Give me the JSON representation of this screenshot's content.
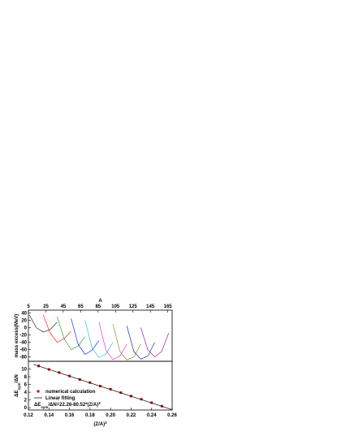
{
  "chart_data": [
    {
      "type": "line",
      "xlabel": "A",
      "ylabel": "mass excess(MeV)",
      "xlim": [
        5,
        170
      ],
      "ylim": [
        -92,
        48
      ],
      "xticks": [
        5,
        25,
        45,
        65,
        85,
        105,
        125,
        145,
        165
      ],
      "yticks": [
        40,
        20,
        0,
        -20,
        -40,
        -60,
        -80
      ],
      "series": [
        {
          "color": "#000000",
          "x": [
            6,
            14,
            22,
            30,
            38
          ],
          "values": [
            35,
            0,
            -12,
            -5,
            15
          ]
        },
        {
          "color": "#ff0000",
          "x": [
            22,
            30,
            38,
            46,
            54
          ],
          "values": [
            35,
            -15,
            -40,
            -30,
            -10
          ]
        },
        {
          "color": "#00a000",
          "x": [
            38,
            46,
            54,
            62,
            70
          ],
          "values": [
            30,
            -30,
            -60,
            -50,
            -25
          ]
        },
        {
          "color": "#0000ff",
          "x": [
            54,
            62,
            70,
            78,
            86
          ],
          "values": [
            25,
            -45,
            -73,
            -62,
            -35
          ]
        },
        {
          "color": "#00c0c0",
          "x": [
            70,
            78,
            86,
            94,
            102
          ],
          "values": [
            20,
            -55,
            -82,
            -72,
            -40
          ]
        },
        {
          "color": "#ff00ff",
          "x": [
            86,
            94,
            102,
            110,
            118
          ],
          "values": [
            15,
            -62,
            -87,
            -78,
            -45
          ]
        },
        {
          "color": "#808000",
          "x": [
            102,
            110,
            118,
            126,
            134
          ],
          "values": [
            10,
            -65,
            -88,
            -80,
            -45
          ]
        },
        {
          "color": "#000080",
          "x": [
            118,
            126,
            134,
            142,
            150
          ],
          "values": [
            5,
            -65,
            -86,
            -78,
            -40
          ]
        },
        {
          "color": "#800080",
          "x": [
            134,
            142,
            150,
            158,
            166
          ],
          "values": [
            0,
            -60,
            -80,
            -65,
            -15
          ]
        }
      ]
    },
    {
      "type": "scatter",
      "xlabel": [
        "(Z/A)",
        "2"
      ],
      "ylabel": [
        "ΔE",
        "sym",
        "/ΔN"
      ],
      "xlim": [
        0.12,
        0.26
      ],
      "ylim": [
        -0.6,
        12
      ],
      "xticks": [
        0.12,
        0.14,
        0.16,
        0.18,
        0.2,
        {
          "value": 0.2,
          "label": "0.20"
        },
        0.22,
        0.24,
        0.26
      ],
      "yticks": [
        0,
        2,
        4,
        6,
        8,
        10
      ],
      "series": [
        {
          "name": "numerical calculation",
          "color": "#d40000",
          "x": [
            0.13,
            0.14,
            0.15,
            0.16,
            0.17,
            0.18,
            0.19,
            0.2,
            0.21,
            0.22,
            0.23,
            0.24,
            0.25
          ],
          "values": [
            10.8,
            9.9,
            9.1,
            8.2,
            7.3,
            6.5,
            5.6,
            4.8,
            3.9,
            3.0,
            2.2,
            1.3,
            0.4
          ]
        },
        {
          "name": "Linear fitting",
          "color": "#000000",
          "x": [
            0.125,
            0.26
          ],
          "values": [
            11.2,
            -0.5
          ]
        }
      ],
      "annotation": [
        "ΔE",
        "sym",
        "/ΔN=22.26-80.52*(Z/A)",
        "2"
      ]
    }
  ]
}
